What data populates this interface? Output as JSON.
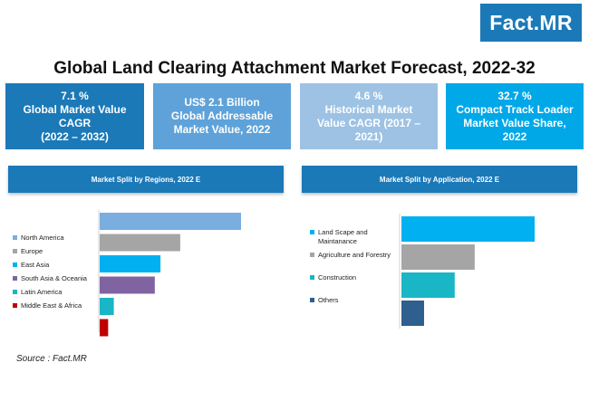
{
  "logo": "Fact.MR",
  "title": "Global Land Clearing Attachment Market Forecast, 2022-32",
  "stats": [
    {
      "lines": [
        "7.1 %",
        "Global Market Value",
        "CAGR",
        "(2022 – 2032)"
      ],
      "color": "#1b79b8"
    },
    {
      "lines": [
        "US$ 2.1 Billion",
        "Global Addressable",
        "Market Value, 2022"
      ],
      "color": "#5ea2d9"
    },
    {
      "lines": [
        "4.6 %",
        "Historical Market",
        "Value CAGR (2017 –",
        "2021)"
      ],
      "color": "#9dc2e4"
    },
    {
      "lines": [
        "32.7 %",
        "Compact Track Loader",
        "Market Value Share,",
        "2022"
      ],
      "color": "#00a8e8"
    }
  ],
  "source": "Source : Fact.MR",
  "chart_data": [
    {
      "type": "bar",
      "orientation": "horizontal",
      "title": "Market Split by Regions, 2022 E",
      "categories": [
        "North America",
        "Europe",
        "East Asia",
        "South Asia & Oceania",
        "Latin America",
        "Middle East & Africa"
      ],
      "values": [
        100,
        57,
        43,
        39,
        10,
        6
      ],
      "colors": [
        "#7aaee0",
        "#a5a5a5",
        "#00b0f0",
        "#8064a2",
        "#19b6c6",
        "#c00000"
      ],
      "xlabel": "",
      "ylabel": "",
      "grid": false,
      "legend": "left"
    },
    {
      "type": "bar",
      "orientation": "horizontal",
      "title": "Market Split by  Application, 2022 E",
      "categories": [
        "Land Scape and Maintanance",
        "Agriculture and Forestry",
        "Construction",
        "Others"
      ],
      "category_lines": [
        [
          "Land Scape and",
          "Maintanance"
        ],
        [
          "Agriculture and Forestry"
        ],
        [
          "Construction"
        ],
        [
          "Others"
        ]
      ],
      "values": [
        100,
        55,
        40,
        17
      ],
      "colors": [
        "#00b0f0",
        "#a5a5a5",
        "#19b6c6",
        "#2e5f8e"
      ],
      "xlabel": "",
      "ylabel": "",
      "grid": false,
      "legend": "left"
    }
  ]
}
